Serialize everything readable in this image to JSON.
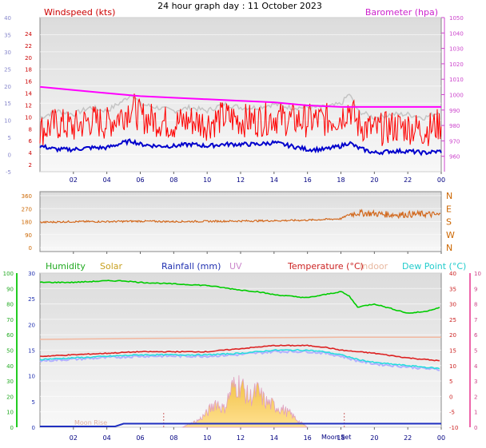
{
  "title": "24 hour graph day : 11 October 2023",
  "colors": {
    "wind": "#ff0000",
    "avgwind": "#0000cc",
    "baro": "#ff00ff",
    "gust_ref": "#c0c0c0",
    "direction": "#d2691e",
    "humidity": "#00cc00",
    "solar": "#e8c020",
    "rainfall": "#2030c0",
    "uv": "#cc88cc",
    "temperature": "#dd2222",
    "indoor": "#f2b8a0",
    "dewpoint": "#22dddd",
    "feels": "#b0b0ff",
    "left_axis": "#8888ff",
    "right_axis": "#cc44aa"
  },
  "x_ticks": [
    "02",
    "04",
    "06",
    "08",
    "10",
    "12",
    "14",
    "16",
    "18",
    "20",
    "22",
    "00"
  ],
  "moon_rise_label": "Moon Rise",
  "moon_set_label": "Moon Set",
  "chart_data": [
    {
      "type": "line",
      "title": "",
      "xlabel": "",
      "ylabel": "Windspeed (kts)",
      "y2label": "Barometer (hpa)",
      "ylim": [
        -5,
        40
      ],
      "y2lim": [
        950,
        1050
      ],
      "yticks": [
        "-5",
        "0",
        "5",
        "10",
        "15",
        "20",
        "25",
        "30",
        "35",
        "40"
      ],
      "ytick_labels_red": [
        "2",
        "4",
        "6",
        "8",
        "10",
        "12",
        "14",
        "16",
        "18",
        "20",
        "22",
        "24"
      ],
      "y2ticks": [
        "960",
        "970",
        "980",
        "990",
        "1000",
        "1010",
        "1020",
        "1030",
        "1040",
        "1050"
      ],
      "x_hours": [
        0,
        24
      ],
      "series": [
        {
          "name": "Windspeed (kts)",
          "x": [
            0,
            1,
            2,
            3,
            4,
            5,
            5.5,
            6,
            7,
            8,
            9,
            10,
            11,
            12,
            13,
            14,
            15,
            16,
            17,
            18,
            18.5,
            19,
            20,
            21,
            22,
            23,
            24
          ],
          "values": [
            7,
            9,
            8,
            10,
            9,
            12,
            14,
            11,
            10,
            9,
            10,
            9,
            11,
            10,
            10,
            11,
            10,
            10,
            10,
            11,
            14,
            9,
            7,
            8,
            8,
            7,
            9
          ]
        },
        {
          "name": "Avg",
          "x": [
            0,
            1,
            2,
            3,
            4,
            5,
            5.5,
            6,
            7,
            8,
            9,
            10,
            11,
            12,
            13,
            14,
            15,
            16,
            17,
            18,
            18.5,
            19,
            20,
            21,
            22,
            23,
            24
          ],
          "values": [
            2.5,
            1.5,
            1.5,
            2,
            2,
            3.5,
            4,
            3,
            2.5,
            2.5,
            3,
            2.5,
            3,
            3,
            3,
            3.5,
            2.5,
            1.5,
            1.5,
            2.5,
            3.5,
            2,
            0.5,
            1,
            1,
            0.5,
            1
          ]
        },
        {
          "name": "Barometer (hpa)",
          "x": [
            0,
            2,
            4,
            6,
            8,
            10,
            12,
            14,
            16,
            18,
            20,
            22,
            24
          ],
          "values": [
            1005,
            1003,
            1001,
            999,
            998,
            997,
            996,
            995,
            993,
            992,
            992,
            992,
            992
          ]
        }
      ]
    },
    {
      "type": "line",
      "ylabel": "",
      "yticks": [
        "0",
        "90",
        "180",
        "270",
        "360"
      ],
      "compass": [
        "N",
        "W",
        "S",
        "E",
        "N"
      ],
      "ylim": [
        0,
        360
      ],
      "series": [
        {
          "name": "Wind Direction",
          "x": [
            0,
            2,
            4,
            6,
            8,
            10,
            12,
            14,
            16,
            18,
            18.5,
            19,
            20,
            21,
            22,
            23,
            24
          ],
          "values": [
            175,
            180,
            180,
            183,
            180,
            182,
            184,
            186,
            190,
            200,
            230,
            240,
            235,
            228,
            230,
            232,
            225
          ]
        }
      ]
    },
    {
      "type": "line",
      "legend": [
        "Humidity",
        "Solar",
        "Rainfall (mm)",
        "UV",
        "Temperature (°C)",
        "Indoor",
        "Dew Point (°C)"
      ],
      "humidity_ticks": [
        "0",
        "10",
        "20",
        "30",
        "40",
        "50",
        "60",
        "70",
        "80",
        "90",
        "100"
      ],
      "rain_ticks": [
        "0",
        "5",
        "10",
        "15",
        "20",
        "25",
        "30"
      ],
      "temp_ticks": [
        "-10",
        "-5",
        "0",
        "5",
        "10",
        "15",
        "20",
        "25",
        "30",
        "35",
        "40"
      ],
      "uv_ticks": [
        "0",
        "1",
        "2",
        "3",
        "4",
        "5",
        "6",
        "7",
        "8",
        "9",
        "10"
      ],
      "series": [
        {
          "name": "Humidity",
          "x": [
            0,
            2,
            4,
            5,
            6,
            8,
            10,
            12,
            13,
            14,
            16,
            17,
            18,
            18.5,
            19,
            20,
            21,
            22,
            23,
            24
          ],
          "values": [
            94,
            94,
            95,
            95,
            94,
            93,
            92,
            89,
            88,
            86,
            84,
            86,
            88,
            85,
            78,
            80,
            77,
            74,
            75,
            78
          ]
        },
        {
          "name": "Temperature (°C)",
          "x": [
            0,
            2,
            4,
            6,
            8,
            10,
            12,
            14,
            16,
            17,
            18,
            20,
            22,
            24
          ],
          "values": [
            13,
            13.5,
            14,
            14.5,
            14.5,
            14.5,
            15.5,
            16.5,
            16.5,
            16,
            15,
            14,
            12.5,
            11.5
          ]
        },
        {
          "name": "Dew Point (°C)",
          "x": [
            0,
            2,
            4,
            6,
            8,
            10,
            12,
            14,
            16,
            17,
            18,
            19,
            20,
            22,
            24
          ],
          "values": [
            12,
            12.5,
            13,
            13.5,
            13.5,
            13.5,
            14,
            15,
            15,
            14.5,
            13.5,
            12,
            11,
            10,
            9
          ]
        },
        {
          "name": "Indoor",
          "x": [
            0,
            6,
            12,
            18,
            24
          ],
          "values": [
            18.5,
            18.8,
            19,
            19.2,
            19.2
          ]
        },
        {
          "name": "Solar",
          "x": [
            8.5,
            9,
            9.5,
            10,
            10.5,
            11,
            11.5,
            12,
            12.5,
            13,
            13.5,
            14,
            14.5,
            15,
            15.5,
            16
          ],
          "values": [
            0,
            5,
            10,
            20,
            35,
            25,
            55,
            60,
            40,
            50,
            35,
            30,
            25,
            18,
            8,
            0
          ]
        },
        {
          "name": "Rainfall (mm)",
          "x": [
            0,
            4.5,
            5,
            24
          ],
          "values": [
            0,
            0,
            0.5,
            0.5
          ]
        }
      ]
    }
  ]
}
